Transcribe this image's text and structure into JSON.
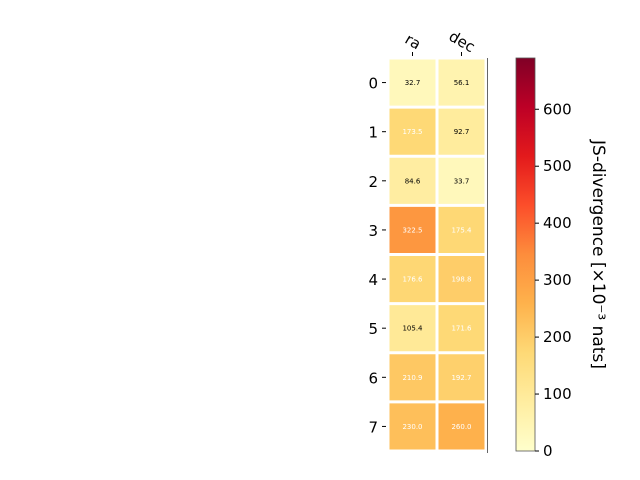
{
  "chart_data": {
    "type": "heatmap",
    "columns": [
      "ra",
      "dec"
    ],
    "rows": [
      "0",
      "1",
      "2",
      "3",
      "4",
      "5",
      "6",
      "7"
    ],
    "values": [
      [
        32.7,
        56.1
      ],
      [
        173.5,
        92.7
      ],
      [
        84.6,
        33.7
      ],
      [
        322.5,
        175.4
      ],
      [
        176.6,
        198.8
      ],
      [
        105.4,
        171.6
      ],
      [
        210.9,
        192.7
      ],
      [
        230.0,
        260.0
      ]
    ],
    "value_labels": [
      [
        "32.7",
        "56.1"
      ],
      [
        "173.5",
        "92.7"
      ],
      [
        "84.6",
        "33.7"
      ],
      [
        "322.5",
        "175.4"
      ],
      [
        "176.6",
        "198.8"
      ],
      [
        "105.4",
        "171.6"
      ],
      [
        "210.9",
        "192.7"
      ],
      [
        "230.0",
        "260.0"
      ]
    ],
    "colormap": "YlOrRd",
    "colorbar": {
      "label": "JS-divergence [×10⁻³ nats]",
      "range": [
        0,
        690
      ],
      "ticks": [
        0,
        100,
        200,
        300,
        400,
        500,
        600
      ],
      "tick_labels": [
        "0",
        "100",
        "200",
        "300",
        "400",
        "500",
        "600"
      ]
    },
    "label_text_colors": {
      "light_cell": "#000000",
      "dark_cell": "#ffffff"
    },
    "grid": false,
    "legend": "none"
  }
}
